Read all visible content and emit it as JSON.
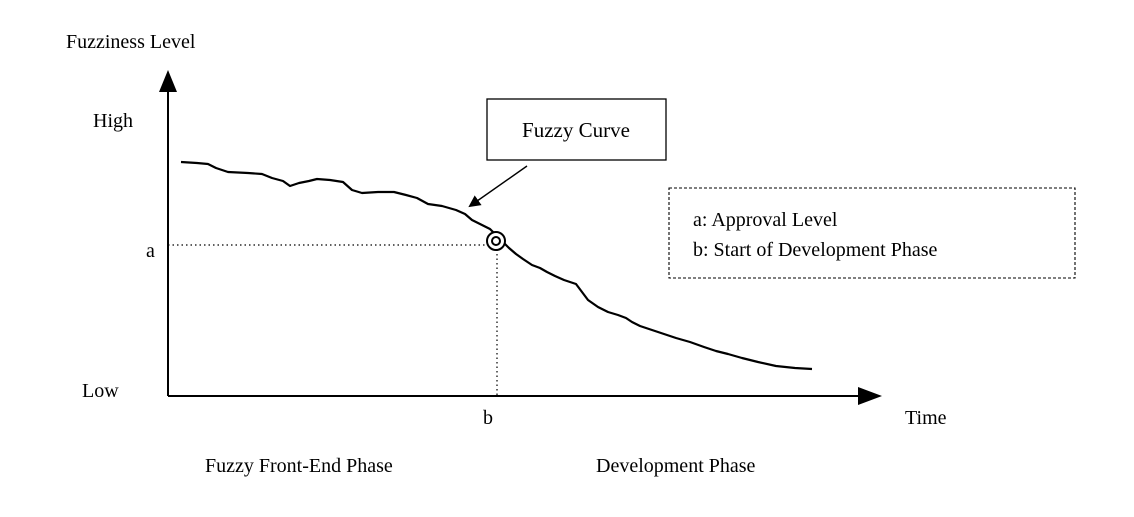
{
  "diagram": {
    "y_axis_title": "Fuzziness Level",
    "y_high_label": "High",
    "y_low_label": "Low",
    "x_axis_title": "Time",
    "marker_a_label": "a",
    "marker_b_label": "b",
    "callout_label": "Fuzzy Curve",
    "legend": {
      "line_a": "a: Approval Level",
      "line_b": "b: Start of Development Phase"
    },
    "phase_left": "Fuzzy Front-End Phase",
    "phase_right": "Development Phase"
  }
}
